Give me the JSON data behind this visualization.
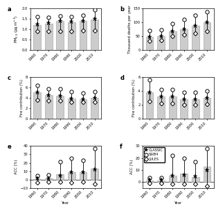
{
  "years": [
    1960,
    1970,
    1980,
    1990,
    2000,
    2010
  ],
  "panel_a": {
    "title": "a",
    "ylabel": "PM$_{2.5}$ (μg m$^{-3}$)",
    "bar": [
      1.2,
      1.28,
      1.4,
      1.35,
      1.42,
      1.48
    ],
    "classic": [
      1.25,
      1.3,
      1.4,
      1.37,
      1.42,
      1.5
    ],
    "ssib4": [
      1.6,
      1.58,
      1.65,
      1.6,
      1.68,
      1.95
    ],
    "jules": [
      0.9,
      0.92,
      0.92,
      0.92,
      0.93,
      0.95
    ],
    "ylim": [
      0,
      2.0
    ],
    "yticks": [
      0,
      0.5,
      1.0,
      1.5,
      2.0
    ]
  },
  "panel_b": {
    "title": "b",
    "ylabel": "Thousand deaths per year",
    "bar": [
      47,
      51,
      68,
      76,
      88,
      100
    ],
    "classic": [
      47,
      51,
      68,
      76,
      88,
      100
    ],
    "ssib4": [
      70,
      72,
      95,
      110,
      125,
      138
    ],
    "jules": [
      32,
      35,
      50,
      55,
      60,
      68
    ],
    "ylim": [
      0,
      150
    ],
    "yticks": [
      0,
      50,
      100,
      150
    ]
  },
  "panel_c": {
    "title": "c",
    "ylabel": "Fire contribution (%)",
    "bar": [
      5.1,
      4.6,
      4.5,
      3.9,
      3.8,
      4.0
    ],
    "classic": [
      5.1,
      4.6,
      4.5,
      3.9,
      3.8,
      4.0
    ],
    "ssib4": [
      6.4,
      5.8,
      5.8,
      5.2,
      5.0,
      5.2
    ],
    "jules": [
      3.7,
      3.5,
      3.5,
      3.2,
      3.2,
      3.3
    ],
    "ylim": [
      0,
      8
    ],
    "yticks": [
      0,
      2,
      4,
      6,
      8
    ]
  },
  "panel_d": {
    "title": "d",
    "ylabel": "Fire contribution (%)",
    "bar": [
      3.8,
      3.2,
      3.2,
      2.8,
      2.8,
      3.0
    ],
    "classic": [
      3.8,
      3.2,
      3.2,
      2.8,
      2.8,
      3.0
    ],
    "ssib4": [
      5.6,
      4.2,
      4.2,
      3.8,
      3.8,
      4.0
    ],
    "jules": [
      2.5,
      2.2,
      2.2,
      2.0,
      2.0,
      2.1
    ],
    "ylim": [
      0,
      6
    ],
    "yticks": [
      0,
      2,
      4,
      6
    ]
  },
  "panel_e": {
    "title": "e",
    "ylabel": "ACC (%)",
    "bar": [
      0.5,
      1.0,
      6.0,
      8.5,
      9.0,
      13.0
    ],
    "classic": [
      1.0,
      1.5,
      5.0,
      9.0,
      9.0,
      12.0
    ],
    "ssib4": [
      5.0,
      5.5,
      21.5,
      25.0,
      22.5,
      37.0
    ],
    "jules": [
      -3.5,
      -3.0,
      -3.0,
      -3.5,
      -3.0,
      -5.0
    ],
    "ylim": [
      -10,
      40
    ],
    "yticks": [
      -10,
      0,
      10,
      20,
      30,
      40
    ]
  },
  "panel_f": {
    "title": "f",
    "ylabel": "ACC (%)",
    "bar": [
      1.0,
      1.0,
      5.5,
      7.0,
      4.0,
      13.0
    ],
    "classic": [
      1.5,
      1.5,
      5.0,
      6.0,
      4.5,
      10.0
    ],
    "ssib4": [
      3.5,
      3.5,
      22.0,
      20.0,
      17.0,
      28.0
    ],
    "jules": [
      -1.0,
      -1.0,
      -1.5,
      -2.0,
      -1.5,
      -3.5
    ],
    "ylim": [
      -5,
      30
    ],
    "yticks": [
      0,
      10,
      20,
      30
    ]
  },
  "bar_color": "#cccccc",
  "bar_edgecolor": "#999999"
}
